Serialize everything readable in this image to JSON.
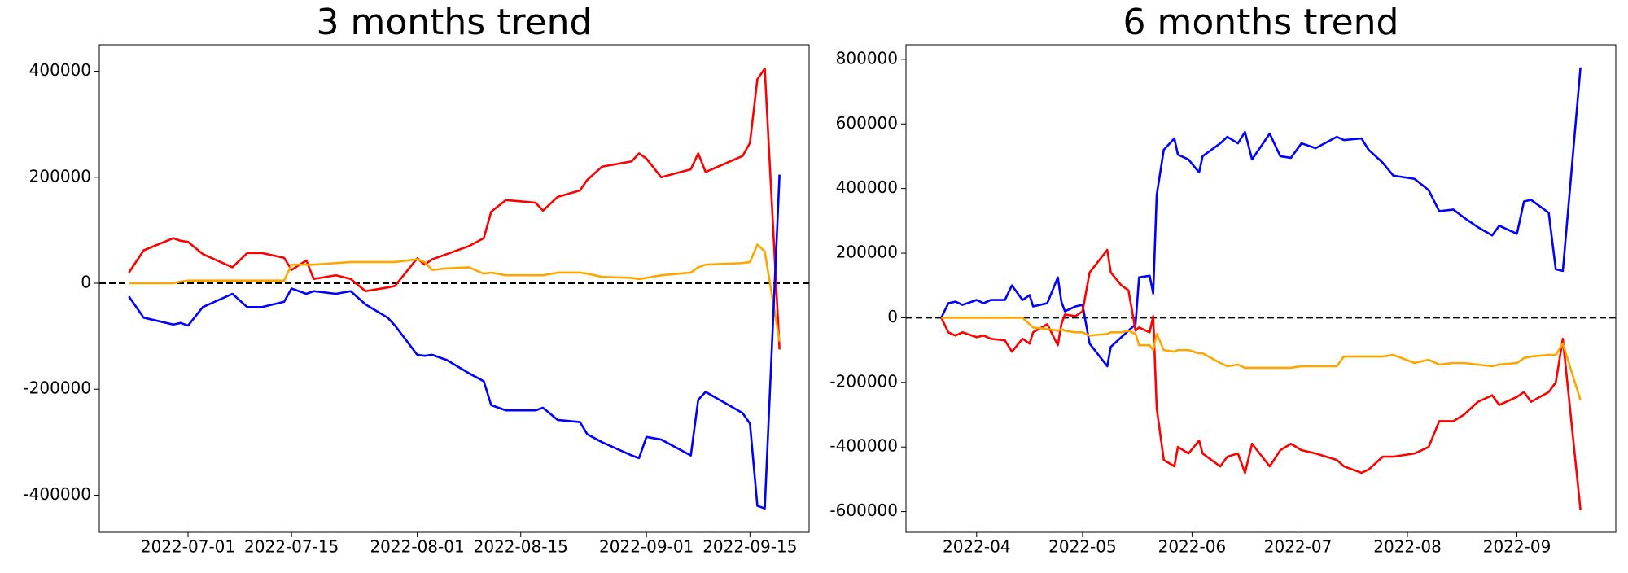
{
  "chart_data": [
    {
      "type": "line",
      "title": "3 months trend",
      "x": [
        "2022-06-23",
        "2022-06-25",
        "2022-06-29",
        "2022-06-30",
        "2022-07-01",
        "2022-07-03",
        "2022-07-07",
        "2022-07-09",
        "2022-07-11",
        "2022-07-14",
        "2022-07-15",
        "2022-07-17",
        "2022-07-18",
        "2022-07-21",
        "2022-07-23",
        "2022-07-25",
        "2022-07-28",
        "2022-07-29",
        "2022-08-01",
        "2022-08-02",
        "2022-08-03",
        "2022-08-05",
        "2022-08-08",
        "2022-08-10",
        "2022-08-11",
        "2022-08-13",
        "2022-08-17",
        "2022-08-18",
        "2022-08-20",
        "2022-08-23",
        "2022-08-24",
        "2022-08-26",
        "2022-08-30",
        "2022-08-31",
        "2022-09-01",
        "2022-09-03",
        "2022-09-07",
        "2022-09-08",
        "2022-09-09",
        "2022-09-14",
        "2022-09-15",
        "2022-09-16",
        "2022-09-17",
        "2022-09-19"
      ],
      "series": [
        {
          "color": "#ff0000",
          "values": [
            20000,
            62000,
            85000,
            80000,
            78000,
            55000,
            30000,
            57000,
            57000,
            48000,
            25000,
            43000,
            8000,
            15000,
            8000,
            -15000,
            -8000,
            -5000,
            47000,
            35000,
            45000,
            55000,
            70000,
            85000,
            135000,
            157000,
            152000,
            137000,
            163000,
            175000,
            195000,
            220000,
            230000,
            245000,
            235000,
            200000,
            215000,
            245000,
            210000,
            240000,
            265000,
            385000,
            405000,
            -125000
          ]
        },
        {
          "color": "#ffa500",
          "values": [
            0,
            0,
            0,
            3000,
            5000,
            5000,
            5000,
            5000,
            5000,
            5000,
            35000,
            35000,
            35000,
            38000,
            40000,
            40000,
            40000,
            40000,
            45000,
            40000,
            25000,
            28000,
            30000,
            18000,
            20000,
            15000,
            15000,
            15000,
            20000,
            20000,
            18000,
            12000,
            10000,
            8000,
            10000,
            15000,
            20000,
            30000,
            35000,
            38000,
            40000,
            73000,
            60000,
            -110000
          ]
        },
        {
          "color": "#0000ff",
          "values": [
            -25000,
            -65000,
            -78000,
            -75000,
            -80000,
            -45000,
            -20000,
            -45000,
            -45000,
            -35000,
            -10000,
            -20000,
            -15000,
            -20000,
            -15000,
            -40000,
            -65000,
            -80000,
            -135000,
            -137000,
            -135000,
            -145000,
            -170000,
            -185000,
            -230000,
            -240000,
            -240000,
            -235000,
            -258000,
            -262000,
            -285000,
            -300000,
            -325000,
            -330000,
            -290000,
            -295000,
            -325000,
            -220000,
            -205000,
            -245000,
            -265000,
            -420000,
            -425000,
            205000
          ]
        }
      ],
      "xlim": [
        "2022-06-19",
        "2022-09-23"
      ],
      "xticks": [
        "2022-07-01",
        "2022-07-15",
        "2022-08-01",
        "2022-08-15",
        "2022-09-01",
        "2022-09-15"
      ],
      "ylim": [
        -470000,
        450000
      ],
      "yticks": [
        -400000,
        -200000,
        0,
        200000,
        400000
      ],
      "hline": 0,
      "grid": false
    },
    {
      "type": "line",
      "title": "6 months trend",
      "x": [
        "2022-03-22",
        "2022-03-24",
        "2022-03-26",
        "2022-03-28",
        "2022-04-01",
        "2022-04-03",
        "2022-04-05",
        "2022-04-09",
        "2022-04-11",
        "2022-04-14",
        "2022-04-16",
        "2022-04-17",
        "2022-04-21",
        "2022-04-24",
        "2022-04-25",
        "2022-04-26",
        "2022-04-29",
        "2022-05-01",
        "2022-05-03",
        "2022-05-08",
        "2022-05-09",
        "2022-05-12",
        "2022-05-14",
        "2022-05-16",
        "2022-05-17",
        "2022-05-20",
        "2022-05-21",
        "2022-05-22",
        "2022-05-24",
        "2022-05-27",
        "2022-05-28",
        "2022-05-31",
        "2022-06-03",
        "2022-06-04",
        "2022-06-09",
        "2022-06-11",
        "2022-06-14",
        "2022-06-16",
        "2022-06-18",
        "2022-06-23",
        "2022-06-26",
        "2022-06-29",
        "2022-07-02",
        "2022-07-06",
        "2022-07-12",
        "2022-07-14",
        "2022-07-19",
        "2022-07-21",
        "2022-07-25",
        "2022-07-28",
        "2022-08-03",
        "2022-08-07",
        "2022-08-10",
        "2022-08-14",
        "2022-08-17",
        "2022-08-21",
        "2022-08-25",
        "2022-08-27",
        "2022-09-01",
        "2022-09-03",
        "2022-09-05",
        "2022-09-10",
        "2022-09-12",
        "2022-09-14",
        "2022-09-19"
      ],
      "series": [
        {
          "color": "#0000ff",
          "values": [
            0,
            45000,
            50000,
            40000,
            55000,
            45000,
            55000,
            55000,
            100000,
            55000,
            70000,
            35000,
            45000,
            125000,
            50000,
            20000,
            35000,
            40000,
            -80000,
            -150000,
            -90000,
            -60000,
            -40000,
            -20000,
            125000,
            130000,
            75000,
            380000,
            520000,
            555000,
            505000,
            490000,
            450000,
            500000,
            540000,
            560000,
            540000,
            575000,
            490000,
            570000,
            500000,
            495000,
            540000,
            525000,
            560000,
            550000,
            555000,
            520000,
            480000,
            440000,
            430000,
            395000,
            330000,
            335000,
            310000,
            280000,
            255000,
            285000,
            260000,
            360000,
            365000,
            325000,
            150000,
            145000,
            775000
          ]
        },
        {
          "color": "#ff0000",
          "values": [
            0,
            -45000,
            -55000,
            -45000,
            -60000,
            -55000,
            -65000,
            -70000,
            -105000,
            -65000,
            -80000,
            -45000,
            -20000,
            -85000,
            -20000,
            10000,
            5000,
            20000,
            140000,
            210000,
            140000,
            100000,
            85000,
            -40000,
            -30000,
            -45000,
            5000,
            -280000,
            -440000,
            -460000,
            -400000,
            -420000,
            -380000,
            -420000,
            -460000,
            -430000,
            -420000,
            -480000,
            -390000,
            -460000,
            -410000,
            -390000,
            -410000,
            -420000,
            -440000,
            -460000,
            -480000,
            -470000,
            -430000,
            -430000,
            -420000,
            -400000,
            -320000,
            -320000,
            -300000,
            -260000,
            -240000,
            -270000,
            -245000,
            -230000,
            -260000,
            -230000,
            -200000,
            -65000,
            -595000
          ]
        },
        {
          "color": "#ffa500",
          "values": [
            0,
            0,
            0,
            0,
            0,
            0,
            0,
            0,
            0,
            0,
            -20000,
            -30000,
            -35000,
            -40000,
            -35000,
            -40000,
            -45000,
            -45000,
            -55000,
            -50000,
            -45000,
            -45000,
            -40000,
            -50000,
            -85000,
            -85000,
            -100000,
            -50000,
            -100000,
            -105000,
            -100000,
            -100000,
            -110000,
            -110000,
            -140000,
            -150000,
            -145000,
            -155000,
            -155000,
            -155000,
            -155000,
            -155000,
            -150000,
            -150000,
            -150000,
            -120000,
            -120000,
            -120000,
            -120000,
            -115000,
            -140000,
            -130000,
            -145000,
            -140000,
            -140000,
            -145000,
            -150000,
            -145000,
            -140000,
            -125000,
            -120000,
            -115000,
            -115000,
            -80000,
            -255000
          ]
        }
      ],
      "xlim": [
        "2022-03-12",
        "2022-09-29"
      ],
      "xticks": [
        "2022-04",
        "2022-05",
        "2022-06",
        "2022-07",
        "2022-08",
        "2022-09"
      ],
      "ylim": [
        -664000,
        845000
      ],
      "yticks": [
        -600000,
        -400000,
        -200000,
        0,
        200000,
        400000,
        600000,
        800000
      ],
      "hline": 0,
      "grid": false
    }
  ]
}
